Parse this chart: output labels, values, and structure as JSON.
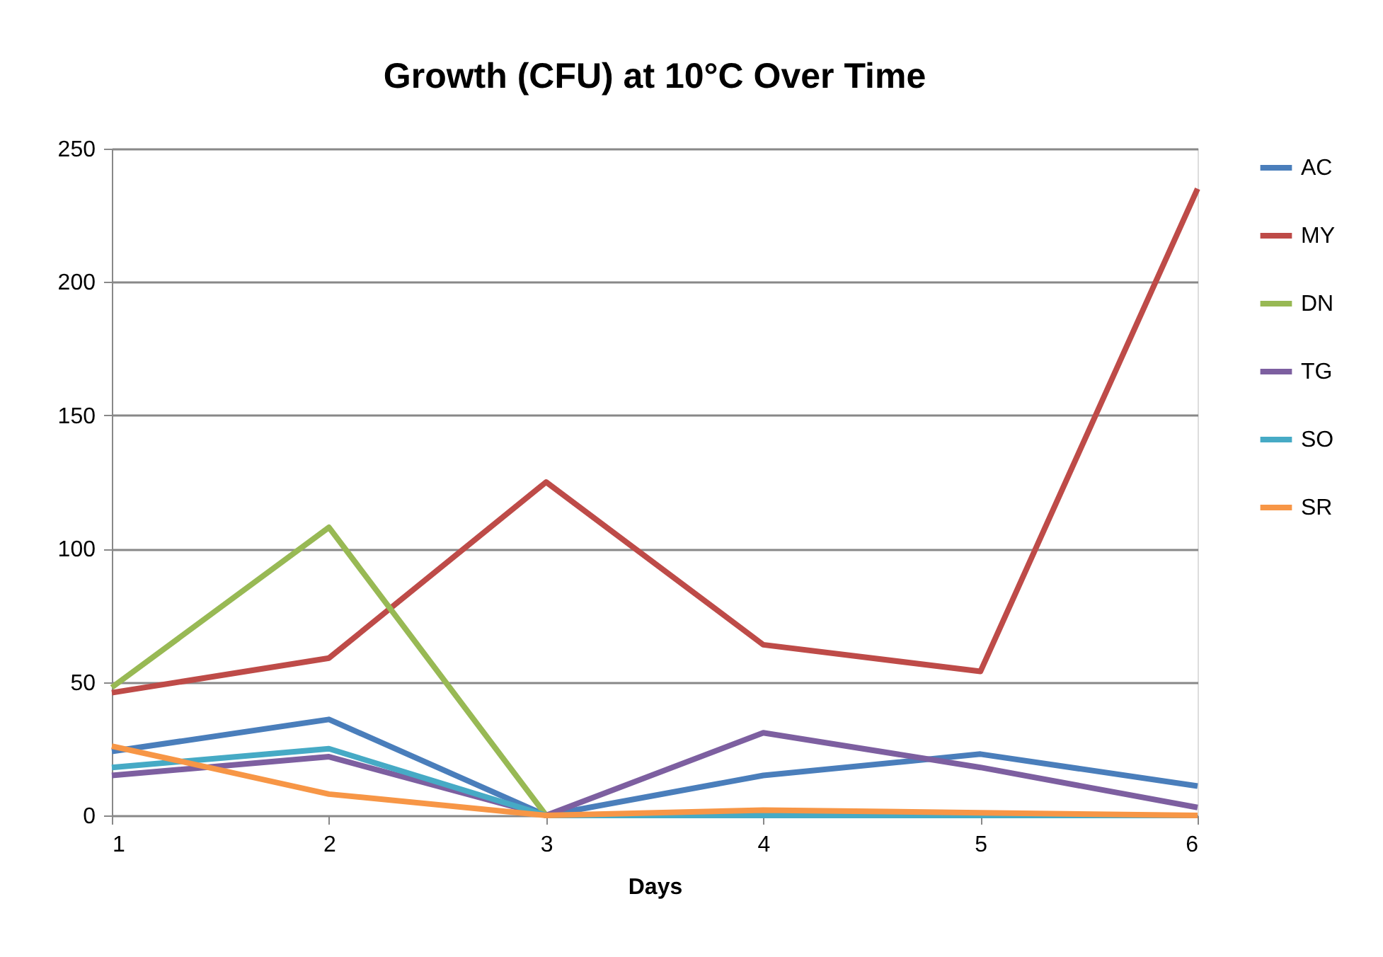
{
  "chart_data": {
    "type": "line",
    "title": "Growth (CFU) at 10°C Over Time",
    "xlabel": "Days",
    "x": [
      1,
      2,
      3,
      4,
      5,
      6
    ],
    "xlim": [
      1,
      6
    ],
    "xticks": [
      1,
      2,
      3,
      4,
      5,
      6
    ],
    "ylim": [
      0,
      250
    ],
    "yticks": [
      0,
      50,
      100,
      150,
      200,
      250
    ],
    "grid": "y",
    "legend": "right",
    "marker": "none",
    "line_style": "solid",
    "series": [
      {
        "name": "AC",
        "color": "#4a7ebb",
        "values": [
          24,
          36,
          0,
          15,
          23,
          11
        ]
      },
      {
        "name": "MY",
        "color": "#be4b48",
        "values": [
          46,
          59,
          125,
          64,
          54,
          235
        ]
      },
      {
        "name": "DN",
        "color": "#98b954",
        "values": [
          48,
          108,
          0,
          null,
          null,
          null
        ]
      },
      {
        "name": "TG",
        "color": "#7d5fa0",
        "values": [
          15,
          22,
          0,
          31,
          18,
          3
        ]
      },
      {
        "name": "SO",
        "color": "#46aac5",
        "values": [
          18,
          25,
          0,
          0,
          0,
          0
        ]
      },
      {
        "name": "SR",
        "color": "#f79646",
        "values": [
          26,
          8,
          0,
          2,
          1,
          0
        ]
      }
    ]
  }
}
